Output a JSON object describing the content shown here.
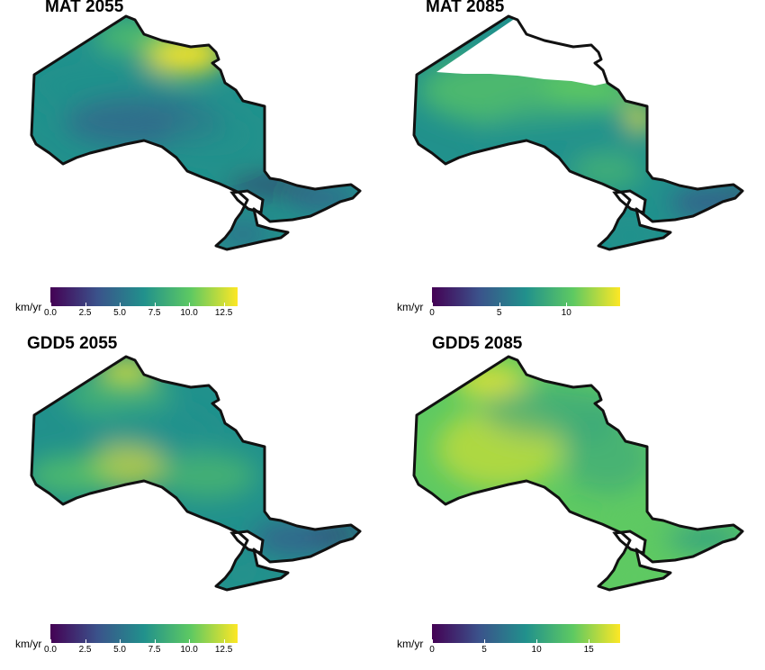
{
  "panels": [
    {
      "title": "MAT 2055",
      "legend": {
        "unit": "km/yr",
        "min": 0,
        "max": 13.5,
        "ticks": [
          "0.0",
          "2.5",
          "5.0",
          "7.5",
          "10.0",
          "12.5"
        ],
        "tick_values": [
          0,
          2.5,
          5,
          7.5,
          10,
          12.5
        ]
      },
      "missing_north_region": false,
      "pattern": "mat2055"
    },
    {
      "title": "MAT 2085",
      "legend": {
        "unit": "km/yr",
        "min": 0,
        "max": 14,
        "ticks": [
          "0",
          "5",
          "10"
        ],
        "tick_values": [
          0,
          5,
          10
        ]
      },
      "missing_north_region": true,
      "pattern": "mat2085"
    },
    {
      "title": "GDD5 2055",
      "legend": {
        "unit": "km/yr",
        "min": 0,
        "max": 13.5,
        "ticks": [
          "0.0",
          "2.5",
          "5.0",
          "7.5",
          "10.0",
          "12.5"
        ],
        "tick_values": [
          0,
          2.5,
          5,
          7.5,
          10,
          12.5
        ]
      },
      "missing_north_region": false,
      "pattern": "gdd2055"
    },
    {
      "title": "GDD5 2085",
      "legend": {
        "unit": "km/yr",
        "min": 0,
        "max": 18,
        "ticks": [
          "0",
          "5",
          "10",
          "15"
        ],
        "tick_values": [
          0,
          5,
          10,
          15
        ]
      },
      "missing_north_region": false,
      "pattern": "gdd2085"
    }
  ],
  "colormap": "viridis",
  "colors": [
    "#440154",
    "#3b528b",
    "#21918c",
    "#5ec962",
    "#fde725"
  ]
}
